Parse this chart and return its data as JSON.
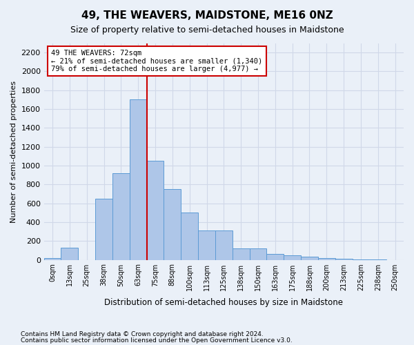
{
  "title": "49, THE WEAVERS, MAIDSTONE, ME16 0NZ",
  "subtitle": "Size of property relative to semi-detached houses in Maidstone",
  "xlabel": "Distribution of semi-detached houses by size in Maidstone",
  "ylabel": "Number of semi-detached properties",
  "bin_labels": [
    "0sqm",
    "13sqm",
    "25sqm",
    "38sqm",
    "50sqm",
    "63sqm",
    "75sqm",
    "88sqm",
    "100sqm",
    "113sqm",
    "125sqm",
    "138sqm",
    "150sqm",
    "163sqm",
    "175sqm",
    "188sqm",
    "200sqm",
    "213sqm",
    "225sqm",
    "238sqm",
    "250sqm"
  ],
  "bar_heights": [
    20,
    130,
    0,
    650,
    920,
    1700,
    1050,
    750,
    500,
    310,
    310,
    120,
    120,
    60,
    50,
    35,
    20,
    10,
    5,
    5,
    0
  ],
  "bar_color": "#aec6e8",
  "bar_edge_color": "#5b9bd5",
  "grid_color": "#d0d8e8",
  "background_color": "#eaf0f8",
  "annotation_box_color": "#ffffff",
  "annotation_border_color": "#cc0000",
  "property_line_color": "#cc0000",
  "property_value": 72,
  "property_label": "49 THE WEAVERS: 72sqm",
  "pct_smaller": 21,
  "pct_larger": 79,
  "count_smaller": 1340,
  "count_larger": 4977,
  "ylim": [
    0,
    2300
  ],
  "yticks": [
    0,
    200,
    400,
    600,
    800,
    1000,
    1200,
    1400,
    1600,
    1800,
    2000,
    2200
  ],
  "footnote1": "Contains HM Land Registry data © Crown copyright and database right 2024.",
  "footnote2": "Contains public sector information licensed under the Open Government Licence v3.0."
}
